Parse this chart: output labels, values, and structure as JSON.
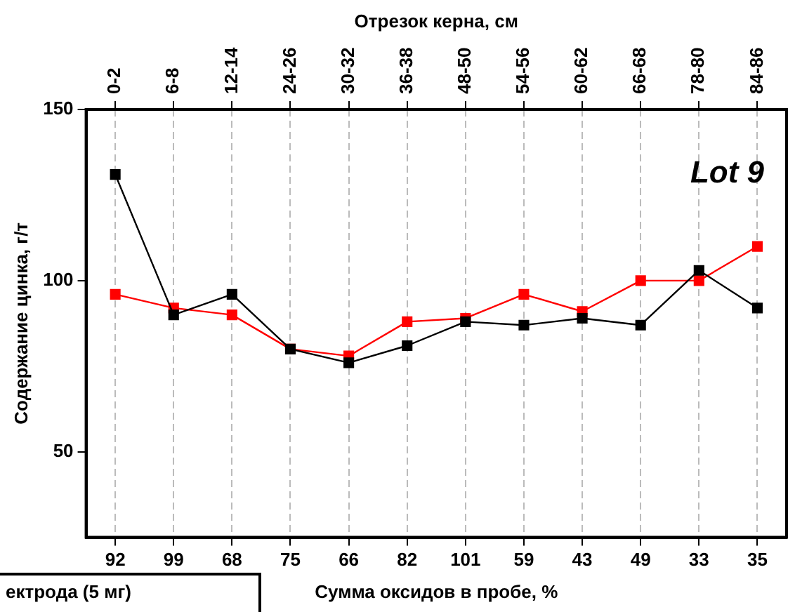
{
  "chart_data": {
    "type": "line",
    "xlabel": "Сумма оксидов в пробе, %",
    "ylabel": "Содержание цинка, г/т",
    "x2label": "Отрезок керна, см",
    "categories": [
      "92",
      "99",
      "68",
      "75",
      "66",
      "82",
      "101",
      "59",
      "43",
      "49",
      "33",
      "35"
    ],
    "series": [
      {
        "color": "#000000",
        "values": [
          131,
          90,
          96,
          80,
          76,
          81,
          88,
          87,
          89,
          87,
          103,
          92
        ]
      },
      {
        "color": "#ff0000",
        "values": [
          96,
          92,
          90,
          80,
          78,
          88,
          89,
          96,
          91,
          100,
          100,
          110
        ]
      }
    ],
    "ylim": [
      25,
      150
    ],
    "yticks": [
      50,
      100,
      150
    ],
    "grid": "x",
    "marker": "square",
    "line_style": "solid",
    "legend": false,
    "annotations": [
      "Lot 9",
      "ектрода (5 мг)",
      "0-2",
      "6-8",
      "12-14",
      "24-26",
      "30-32",
      "36-38",
      "48-50",
      "54-56",
      "60-62",
      "66-68",
      "78-80",
      "84-86"
    ]
  }
}
